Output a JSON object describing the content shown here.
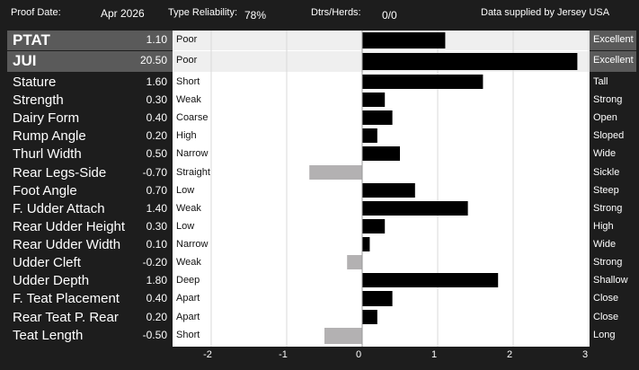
{
  "header": {
    "proof_date_label": "Proof Date:",
    "proof_date_value": "Apr 2026",
    "type_reliability_label": "Type Reliability:",
    "type_reliability_value": "78%",
    "dtrs_herds_label": "Dtrs/Herds:",
    "dtrs_herds_value": "0/0",
    "source": "Data supplied by Jersey USA"
  },
  "colors": {
    "background": "#1d1d1d",
    "band": "#5a5a5a",
    "highlight_band": "#efefef",
    "positive_bar": "#000000",
    "negative_bar": "#b3b1b2",
    "plot_background": "#ffffff"
  },
  "chart_data": {
    "type": "bar",
    "orientation": "horizontal",
    "xlim": [
      -2.5,
      3.0
    ],
    "xticks": [
      "-2",
      "-1",
      "0",
      "1",
      "2",
      "3"
    ],
    "grid": true,
    "traits": [
      {
        "name": "PTAT",
        "value": 1.1,
        "value_label": "1.10",
        "left": "Poor",
        "right": "Excellent",
        "highlight": true
      },
      {
        "name": "JUI",
        "value": 20.5,
        "value_label": "20.50",
        "left": "Poor",
        "right": "Excellent",
        "highlight": true,
        "bar_value": 2.85
      },
      {
        "name": "Stature",
        "value": 1.6,
        "value_label": "1.60",
        "left": "Short",
        "right": "Tall"
      },
      {
        "name": "Strength",
        "value": 0.3,
        "value_label": "0.30",
        "left": "Weak",
        "right": "Strong"
      },
      {
        "name": "Dairy Form",
        "value": 0.4,
        "value_label": "0.40",
        "left": "Coarse",
        "right": "Open"
      },
      {
        "name": "Rump Angle",
        "value": 0.2,
        "value_label": "0.20",
        "left": "High",
        "right": "Sloped"
      },
      {
        "name": "Thurl Width",
        "value": 0.5,
        "value_label": "0.50",
        "left": "Narrow",
        "right": "Wide"
      },
      {
        "name": "Rear Legs-Side",
        "value": -0.7,
        "value_label": "-0.70",
        "left": "Straight",
        "right": "Sickle"
      },
      {
        "name": "Foot Angle",
        "value": 0.7,
        "value_label": "0.70",
        "left": "Low",
        "right": "Steep"
      },
      {
        "name": "F. Udder Attach",
        "value": 1.4,
        "value_label": "1.40",
        "left": "Weak",
        "right": "Strong"
      },
      {
        "name": "Rear Udder Height",
        "value": 0.3,
        "value_label": "0.30",
        "left": "Low",
        "right": "High"
      },
      {
        "name": "Rear Udder Width",
        "value": 0.1,
        "value_label": "0.10",
        "left": "Narrow",
        "right": "Wide"
      },
      {
        "name": "Udder Cleft",
        "value": -0.2,
        "value_label": "-0.20",
        "left": "Weak",
        "right": "Strong"
      },
      {
        "name": "Udder Depth",
        "value": 1.8,
        "value_label": "1.80",
        "left": "Deep",
        "right": "Shallow"
      },
      {
        "name": "F. Teat Placement",
        "value": 0.4,
        "value_label": "0.40",
        "left": "Apart",
        "right": "Close"
      },
      {
        "name": "Rear Teat P. Rear",
        "value": 0.2,
        "value_label": "0.20",
        "left": "Apart",
        "right": "Close"
      },
      {
        "name": "Teat Length",
        "value": -0.5,
        "value_label": "-0.50",
        "left": "Short",
        "right": "Long"
      }
    ]
  }
}
